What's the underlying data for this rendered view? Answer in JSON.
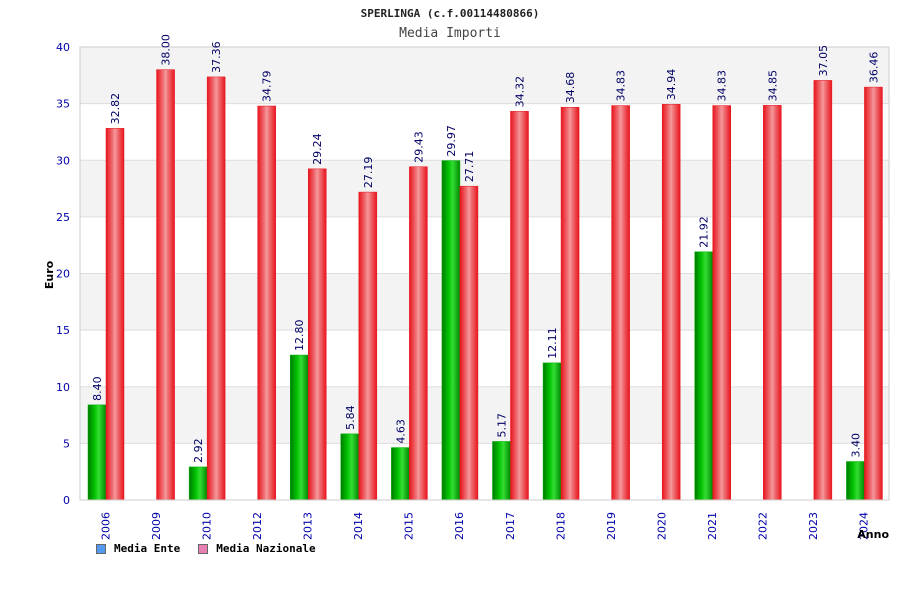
{
  "colors": {
    "ente": "#00b000",
    "nazionale": "#e8141c",
    "legend_ente": "#5599ee",
    "legend_nazionale": "#e680b0",
    "axis_text": "#0000aa",
    "label_text": "#000066"
  },
  "chart_data": {
    "type": "bar",
    "title": "SPERLINGA (c.f.00114480866)",
    "subtitle": "Media Importi",
    "xlabel": "Anno",
    "ylabel": "Euro",
    "ylim": [
      0,
      40
    ],
    "yticks": [
      0,
      5,
      10,
      15,
      20,
      25,
      30,
      35,
      40
    ],
    "grid": true,
    "legend_position": "bottom-left",
    "categories": [
      "2006",
      "2009",
      "2010",
      "2012",
      "2013",
      "2014",
      "2015",
      "2016",
      "2017",
      "2018",
      "2019",
      "2020",
      "2021",
      "2022",
      "2023",
      "2024"
    ],
    "series": [
      {
        "name": "Media Ente",
        "values": [
          8.4,
          null,
          2.92,
          null,
          12.8,
          5.84,
          4.63,
          29.97,
          5.17,
          12.11,
          null,
          null,
          21.92,
          null,
          null,
          3.4
        ],
        "labels": [
          "8.40",
          "",
          "2.92",
          "",
          "12.80",
          "5.84",
          "4.63",
          "29.97",
          "5.17",
          "12.11",
          "",
          "",
          "21.92",
          "",
          "",
          "3.40"
        ]
      },
      {
        "name": "Media Nazionale",
        "values": [
          32.82,
          38.0,
          37.36,
          34.79,
          29.24,
          27.19,
          29.43,
          27.71,
          34.32,
          34.68,
          34.83,
          34.94,
          34.83,
          34.85,
          37.05,
          36.46
        ],
        "labels": [
          "32.82",
          "38.00",
          "37.36",
          "34.79",
          "29.24",
          "27.19",
          "29.43",
          "27.71",
          "34.32",
          "34.68",
          "34.83",
          "34.94",
          "34.83",
          "34.85",
          "37.05",
          "36.46"
        ]
      }
    ]
  }
}
